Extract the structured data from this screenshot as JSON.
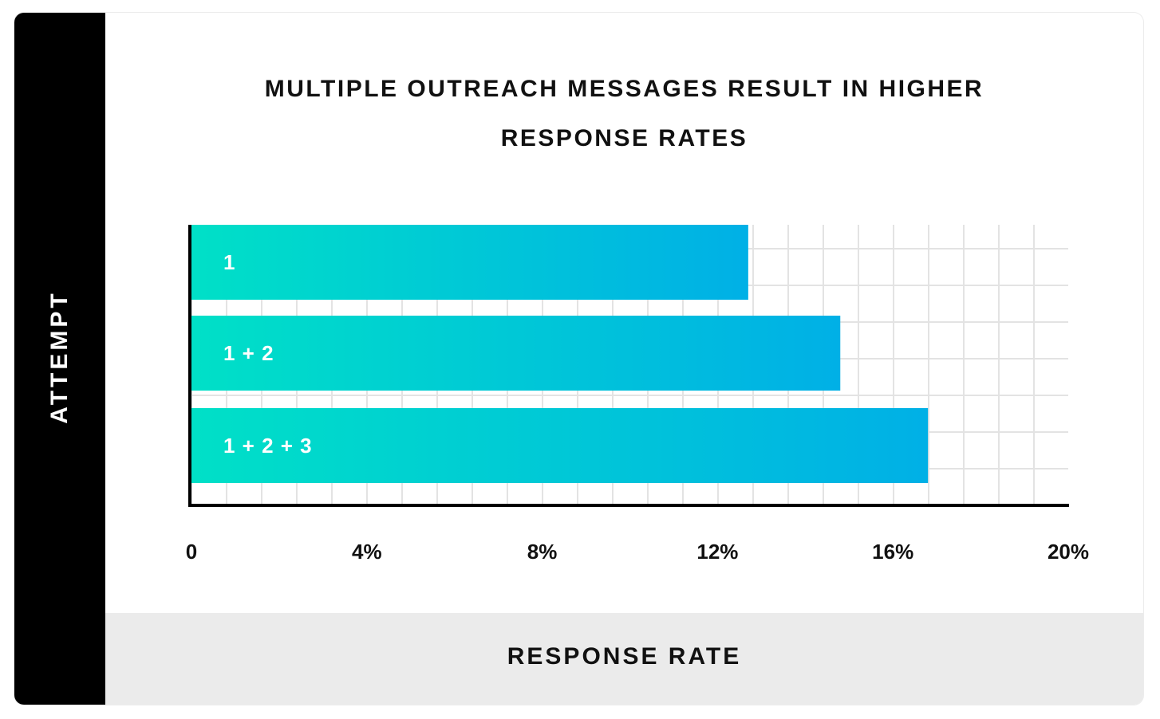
{
  "chart_data": {
    "type": "bar",
    "orientation": "horizontal",
    "title_lines": [
      "MULTIPLE OUTREACH MESSAGES RESULT IN HIGHER",
      "RESPONSE RATES"
    ],
    "xlabel": "RESPONSE RATE",
    "ylabel": "ATTEMPT",
    "categories": [
      "1",
      "1 + 2",
      "1 + 2 + 3"
    ],
    "values": [
      12.7,
      14.8,
      16.8
    ],
    "xlim": [
      0,
      20
    ],
    "xticks": [
      0,
      4,
      8,
      12,
      16,
      20
    ],
    "xtick_labels": [
      "0",
      "4%",
      "8%",
      "12%",
      "16%",
      "20%"
    ],
    "grid": true,
    "colors": {
      "bar_start": "#00e0c7",
      "bar_end": "#00b0e6",
      "grid": "#e3e3e3",
      "axis": "#000000",
      "y_band": "#000000",
      "x_band": "#ebebeb"
    }
  }
}
